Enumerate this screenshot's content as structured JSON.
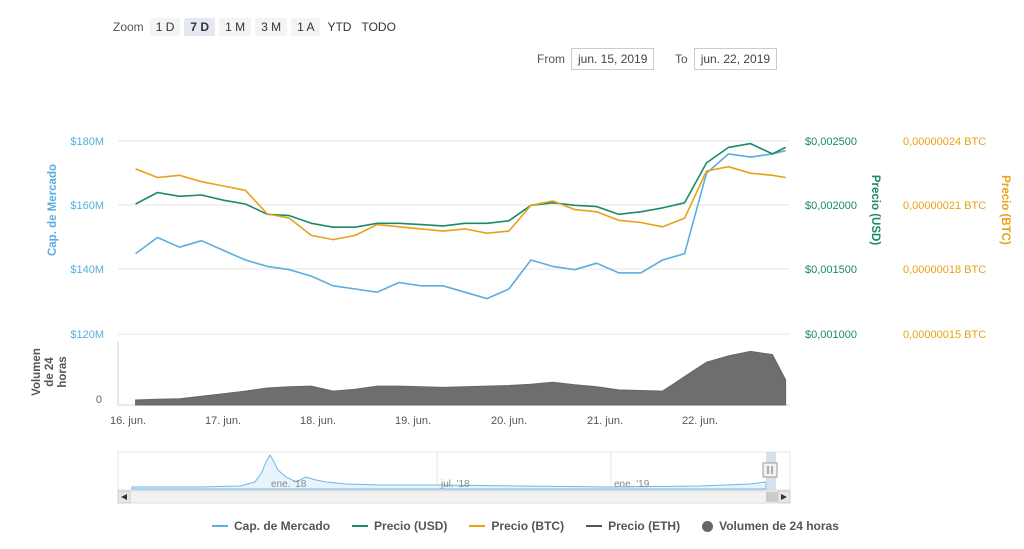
{
  "zoom": {
    "label": "Zoom",
    "buttons": [
      "1 D",
      "7 D",
      "1 M",
      "3 M",
      "1 A",
      "YTD",
      "TODO"
    ],
    "active": "7 D"
  },
  "range": {
    "from_label": "From",
    "from_value": "jun. 15, 2019",
    "to_label": "To",
    "to_value": "jun. 22, 2019"
  },
  "chart_data": {
    "type": "line",
    "x_tick_labels": [
      "16. jun.",
      "17. jun.",
      "18. jun.",
      "19. jun.",
      "20. jun.",
      "21. jun.",
      "22. jun."
    ],
    "axes": {
      "market_cap": {
        "label": "Cap. de Mercado",
        "ticks": [
          "$180M",
          "$160M",
          "$140M",
          "$120M"
        ],
        "tick_values": [
          180,
          160,
          140,
          120
        ],
        "unit": "M USD",
        "color": "#5aaee0"
      },
      "price_usd": {
        "label": "Precio (USD)",
        "ticks": [
          "$0,002500",
          "$0,002000",
          "$0,001500",
          "$0,001000"
        ],
        "tick_values": [
          0.0025,
          0.002,
          0.0015,
          0.001
        ],
        "color": "#1a8a6a"
      },
      "price_btc": {
        "label": "Precio (BTC)",
        "ticks": [
          "0,00000024 BTC",
          "0,00000021 BTC",
          "0,00000018 BTC",
          "0,00000015 BTC"
        ],
        "tick_values": [
          2.4e-07,
          2.1e-07,
          1.8e-07,
          1.5e-07
        ],
        "color": "#e8a21a"
      },
      "volume": {
        "label": "Volumen de 24 horas",
        "label_lines": [
          "Volumen",
          "de 24",
          "horas"
        ],
        "ticks": [
          "0"
        ],
        "color": "#666666"
      }
    },
    "x_days": [
      15.5,
      15.75,
      16.0,
      16.25,
      16.5,
      16.75,
      17.0,
      17.25,
      17.5,
      17.75,
      18.0,
      18.25,
      18.5,
      18.75,
      19.0,
      19.25,
      19.5,
      19.75,
      20.0,
      20.25,
      20.5,
      20.75,
      21.0,
      21.25,
      21.5,
      21.75,
      22.0,
      22.25,
      22.5,
      22.75,
      22.9
    ],
    "series": [
      {
        "name": "Cap. de Mercado",
        "axis": "market_cap",
        "values": [
          145,
          150,
          147,
          149,
          146,
          143,
          141,
          140,
          138,
          135,
          134,
          133,
          136,
          135,
          135,
          133,
          131,
          134,
          143,
          141,
          140,
          142,
          139,
          139,
          143,
          145,
          170,
          176,
          175,
          176,
          177
        ]
      },
      {
        "name": "Precio (USD)",
        "axis": "price_usd",
        "values": [
          0.00201,
          0.0021,
          0.00207,
          0.00208,
          0.00204,
          0.00201,
          0.00193,
          0.00192,
          0.00186,
          0.00183,
          0.00183,
          0.00186,
          0.00186,
          0.00185,
          0.00184,
          0.00186,
          0.00186,
          0.00188,
          0.002,
          0.00202,
          0.002,
          0.00199,
          0.00193,
          0.00195,
          0.00198,
          0.00202,
          0.00233,
          0.00245,
          0.00248,
          0.0024,
          0.00245
        ]
      },
      {
        "name": "Precio (BTC)",
        "axis": "price_btc",
        "values": [
          2.27e-07,
          2.23e-07,
          2.24e-07,
          2.21e-07,
          2.19e-07,
          2.17e-07,
          2.06e-07,
          2.04e-07,
          1.96e-07,
          1.94e-07,
          1.96e-07,
          2.01e-07,
          2e-07,
          1.99e-07,
          1.98e-07,
          1.99e-07,
          1.97e-07,
          1.98e-07,
          2.1e-07,
          2.12e-07,
          2.08e-07,
          2.07e-07,
          2.03e-07,
          2.02e-07,
          2e-07,
          2.04e-07,
          2.26e-07,
          2.28e-07,
          2.25e-07,
          2.24e-07,
          2.23e-07
        ]
      },
      {
        "name": "Volumen de 24 horas",
        "axis": "volume",
        "type": "area",
        "values": [
          0.08,
          0.09,
          0.1,
          0.14,
          0.18,
          0.22,
          0.27,
          0.29,
          0.3,
          0.22,
          0.25,
          0.3,
          0.3,
          0.29,
          0.28,
          0.29,
          0.3,
          0.31,
          0.33,
          0.36,
          0.32,
          0.29,
          0.24,
          0.23,
          0.22,
          0.45,
          0.68,
          0.78,
          0.85,
          0.8,
          0.4
        ]
      }
    ],
    "navigator": {
      "labels": [
        "ene. '18",
        "jul. '18",
        "ene. '19"
      ]
    }
  },
  "legend": [
    {
      "label": "Cap. de Mercado",
      "color": "#5aaee0",
      "kind": "line"
    },
    {
      "label": "Precio (USD)",
      "color": "#1a8a6a",
      "kind": "line"
    },
    {
      "label": "Precio (BTC)",
      "color": "#e8a21a",
      "kind": "line"
    },
    {
      "label": "Precio (ETH)",
      "color": "#555555",
      "kind": "line"
    },
    {
      "label": "Volumen de 24 horas",
      "color": "#666666",
      "kind": "dot"
    }
  ]
}
